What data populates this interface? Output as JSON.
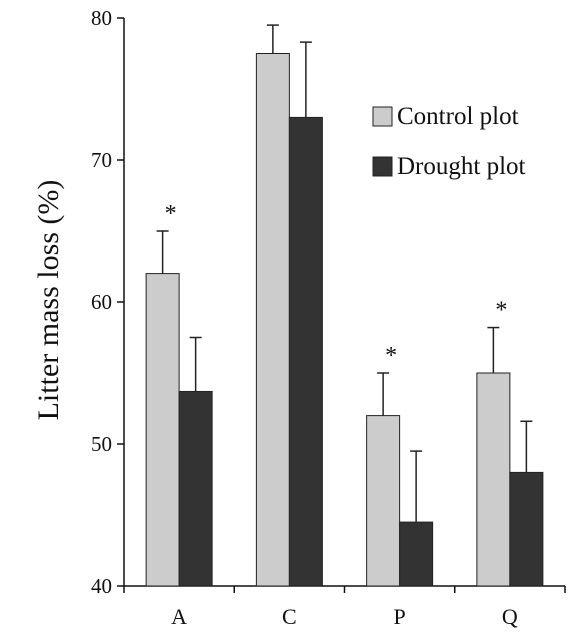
{
  "chart_data": {
    "type": "bar",
    "categories": [
      "A",
      "C",
      "P",
      "Q"
    ],
    "series": [
      {
        "name": "Control plot",
        "color": "#cccccc",
        "values": [
          62,
          77.5,
          52,
          55
        ],
        "errors": [
          3,
          2,
          3,
          3.2
        ]
      },
      {
        "name": "Drought plot",
        "color": "#333333",
        "values": [
          53.7,
          73,
          44.5,
          48
        ],
        "errors": [
          3.8,
          5.3,
          5,
          3.6
        ]
      }
    ],
    "significance": [
      "*",
      "",
      "*",
      "*"
    ],
    "title": "",
    "xlabel": "",
    "ylabel": "Litter mass loss (%)",
    "ylim": [
      40,
      80
    ],
    "yticks": [
      40,
      50,
      60,
      70,
      80
    ],
    "grid": false,
    "legend_position": "top-right"
  }
}
